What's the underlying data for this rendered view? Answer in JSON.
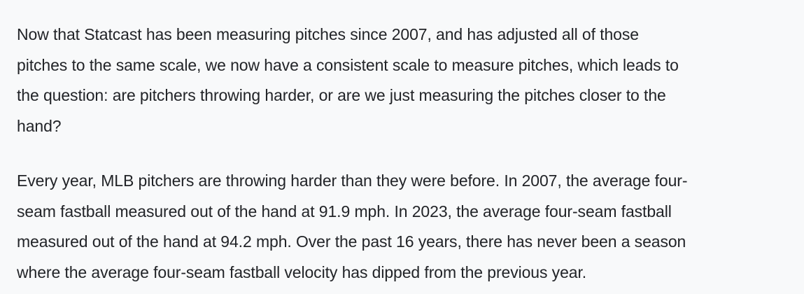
{
  "paragraphs": [
    {
      "lines": [
        "Now that Statcast has been measuring pitches since 2007, and has adjusted all of those",
        "pitches to the same scale, we now have a consistent scale to measure pitches, which leads to",
        "the question: are pitchers throwing harder, or are we just measuring the pitches closer to the",
        "hand?"
      ]
    },
    {
      "lines": [
        "Every year, MLB pitchers are throwing harder than they were before. In 2007, the average four-",
        "seam fastball measured out of the hand at 91.9 mph. In 2023, the average four-seam fastball",
        "measured out of the hand at 94.2 mph. Over the past 16 years, there has never been a season",
        "where the average four-seam fastball velocity has dipped from the previous year."
      ]
    }
  ]
}
